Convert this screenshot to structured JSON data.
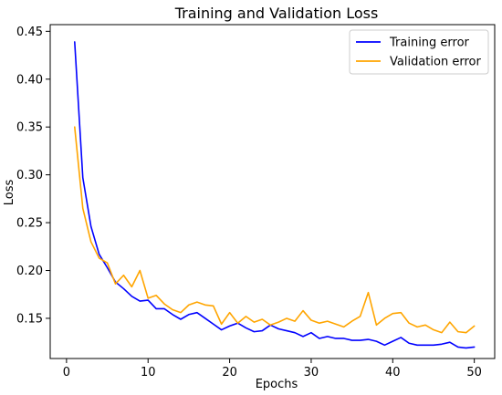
{
  "chart_data": {
    "type": "line",
    "title": "Training and Validation Loss",
    "xlabel": "Epochs",
    "ylabel": "Loss",
    "xlim": [
      -2,
      52.5
    ],
    "ylim": [
      0.108,
      0.457
    ],
    "xticks": [
      0,
      10,
      20,
      30,
      40,
      50
    ],
    "yticks": [
      0.15,
      0.2,
      0.25,
      0.3,
      0.35,
      0.4,
      0.45
    ],
    "grid": false,
    "legend_position": "top-right",
    "series": [
      {
        "name": "Training error",
        "color": "#0000ff",
        "x": [
          1,
          2,
          3,
          4,
          5,
          6,
          7,
          8,
          9,
          10,
          11,
          12,
          13,
          14,
          15,
          16,
          17,
          18,
          19,
          20,
          21,
          22,
          23,
          24,
          25,
          26,
          27,
          28,
          29,
          30,
          31,
          32,
          33,
          34,
          35,
          36,
          37,
          38,
          39,
          40,
          41,
          42,
          43,
          44,
          45,
          46,
          47,
          48,
          49,
          50
        ],
        "values": [
          0.439,
          0.297,
          0.246,
          0.217,
          0.203,
          0.188,
          0.181,
          0.173,
          0.168,
          0.169,
          0.16,
          0.16,
          0.154,
          0.149,
          0.154,
          0.156,
          0.15,
          0.144,
          0.138,
          0.142,
          0.145,
          0.14,
          0.136,
          0.137,
          0.143,
          0.139,
          0.137,
          0.135,
          0.131,
          0.135,
          0.129,
          0.131,
          0.129,
          0.129,
          0.127,
          0.127,
          0.128,
          0.126,
          0.122,
          0.126,
          0.13,
          0.124,
          0.122,
          0.122,
          0.122,
          0.123,
          0.125,
          0.12,
          0.119,
          0.12
        ]
      },
      {
        "name": "Validation error",
        "color": "#ffa500",
        "x": [
          1,
          2,
          3,
          4,
          5,
          6,
          7,
          8,
          9,
          10,
          11,
          12,
          13,
          14,
          15,
          16,
          17,
          18,
          19,
          20,
          21,
          22,
          23,
          24,
          25,
          26,
          27,
          28,
          29,
          30,
          31,
          32,
          33,
          34,
          35,
          36,
          37,
          38,
          39,
          40,
          41,
          42,
          43,
          44,
          45,
          46,
          47,
          48,
          49,
          50
        ],
        "values": [
          0.35,
          0.265,
          0.23,
          0.213,
          0.208,
          0.186,
          0.195,
          0.183,
          0.2,
          0.171,
          0.174,
          0.165,
          0.159,
          0.156,
          0.164,
          0.167,
          0.164,
          0.163,
          0.144,
          0.156,
          0.145,
          0.152,
          0.146,
          0.149,
          0.143,
          0.146,
          0.15,
          0.147,
          0.158,
          0.148,
          0.145,
          0.147,
          0.144,
          0.141,
          0.147,
          0.152,
          0.177,
          0.143,
          0.15,
          0.155,
          0.156,
          0.145,
          0.141,
          0.143,
          0.138,
          0.135,
          0.146,
          0.136,
          0.135,
          0.142
        ]
      }
    ]
  }
}
